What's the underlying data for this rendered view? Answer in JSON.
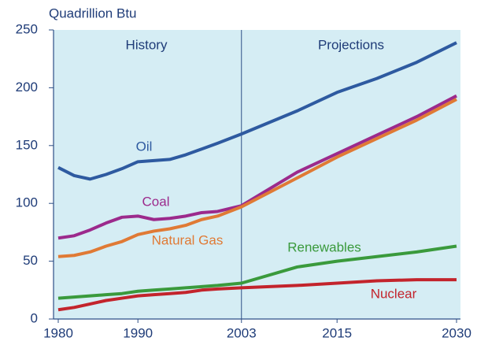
{
  "chart_data": {
    "type": "line",
    "y_label": "Quadrillion Btu",
    "annotations": [
      "History",
      "Projections"
    ],
    "x": [
      1980,
      1982,
      1984,
      1986,
      1988,
      1990,
      1992,
      1994,
      1996,
      1998,
      2000,
      2003,
      2010,
      2015,
      2020,
      2025,
      2030
    ],
    "series": [
      {
        "name": "Oil",
        "color": "#2e5aa0",
        "values": [
          131,
          124,
          121,
          125,
          130,
          136,
          137,
          138,
          142,
          147,
          152,
          160,
          180,
          196,
          208,
          222,
          239
        ]
      },
      {
        "name": "Coal",
        "color": "#9c2a8c",
        "values": [
          70,
          72,
          77,
          83,
          88,
          89,
          86,
          87,
          89,
          92,
          93,
          98,
          127,
          143,
          159,
          175,
          193
        ]
      },
      {
        "name": "Natural Gas",
        "color": "#e07a35",
        "values": [
          54,
          55,
          58,
          63,
          67,
          73,
          76,
          78,
          81,
          86,
          89,
          97,
          122,
          140,
          156,
          172,
          190
        ]
      },
      {
        "name": "Renewables",
        "color": "#3a9a3c",
        "values": [
          18,
          19,
          20,
          21,
          22,
          24,
          25,
          26,
          27,
          28,
          29,
          31,
          45,
          50,
          54,
          58,
          63
        ]
      },
      {
        "name": "Nuclear",
        "color": "#c3242c",
        "values": [
          8,
          10,
          13,
          16,
          18,
          20,
          21,
          22,
          23,
          25,
          26,
          27,
          29,
          31,
          33,
          34,
          34
        ]
      }
    ],
    "xlim": [
      1980,
      2030
    ],
    "xticks": [
      1980,
      1990,
      2003,
      2015,
      2030
    ],
    "ylim": [
      0,
      250
    ],
    "yticks": [
      0,
      50,
      100,
      150,
      200,
      250
    ],
    "grid": false
  }
}
